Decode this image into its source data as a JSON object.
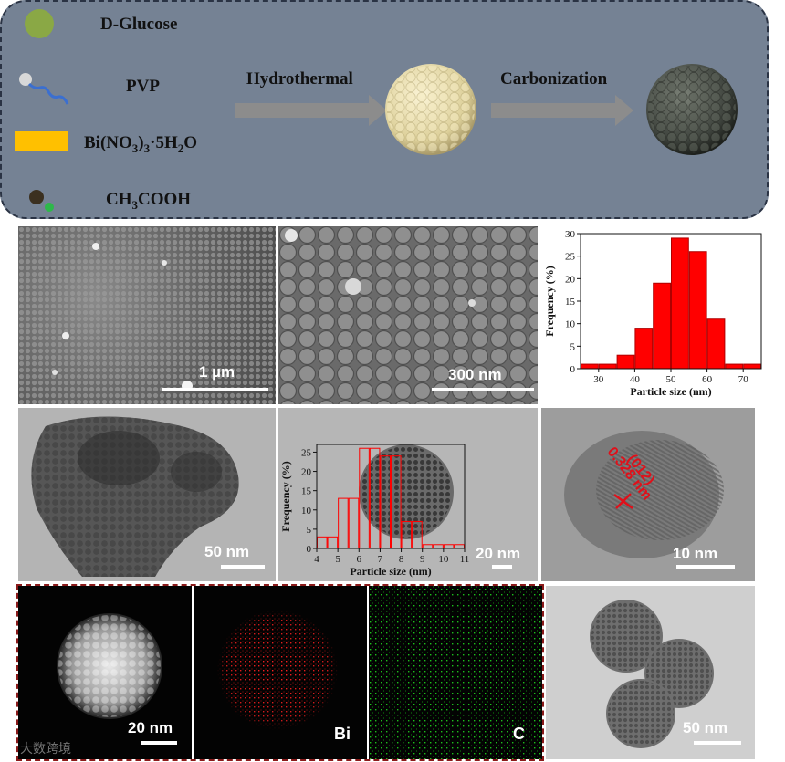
{
  "scheme": {
    "reagents": [
      "D-Glucose",
      "PVP",
      "Bi(NO3)3·5H2O",
      "CH3COOH"
    ],
    "steps": [
      "Hydrothermal",
      "Carbonization"
    ]
  },
  "panels": {
    "sem1_scale": "1 µm",
    "sem2_scale": "300  nm",
    "tem1_scale": "50  nm",
    "tem2_scale": "20  nm",
    "hrtem_scale": "10  nm",
    "hrtem_spacing": "0.328 nm",
    "hrtem_plane": "(012)",
    "haadf_scale": "20  nm",
    "map_bi": "Bi",
    "map_c": "C",
    "tem3_scale": "50  nm"
  },
  "watermark": "大数跨境",
  "chart_data": [
    {
      "type": "bar",
      "x": [
        27.5,
        32.5,
        37.5,
        42.5,
        47.5,
        52.5,
        57.5,
        62.5,
        67.5,
        72.5
      ],
      "values": [
        1,
        1,
        3,
        9,
        19,
        29,
        26,
        11,
        1,
        1
      ],
      "xlabel": "Particle size (nm)",
      "ylabel": "Frequency (%)",
      "xlim": [
        25,
        75
      ],
      "ylim": [
        0,
        30
      ],
      "xticks": [
        30,
        40,
        50,
        60,
        70
      ],
      "yticks": [
        0,
        5,
        10,
        15,
        20,
        25,
        30
      ],
      "color": "#ff0000"
    },
    {
      "type": "bar",
      "x": [
        4.25,
        4.75,
        5.25,
        5.75,
        6.25,
        6.75,
        7.25,
        7.75,
        8.25,
        8.75,
        9.25,
        9.75,
        10.25,
        10.75
      ],
      "values": [
        3,
        3,
        13,
        13,
        26,
        26,
        24,
        24,
        7,
        7,
        1,
        1,
        1,
        1
      ],
      "xlabel": "Particle size (nm)",
      "ylabel": "Frequency (%)",
      "xlim": [
        4,
        11
      ],
      "ylim": [
        0,
        27
      ],
      "xticks": [
        4,
        5,
        6,
        7,
        8,
        9,
        10,
        11
      ],
      "yticks": [
        0,
        5,
        10,
        15,
        20,
        25
      ],
      "color": "#ff0000"
    }
  ]
}
